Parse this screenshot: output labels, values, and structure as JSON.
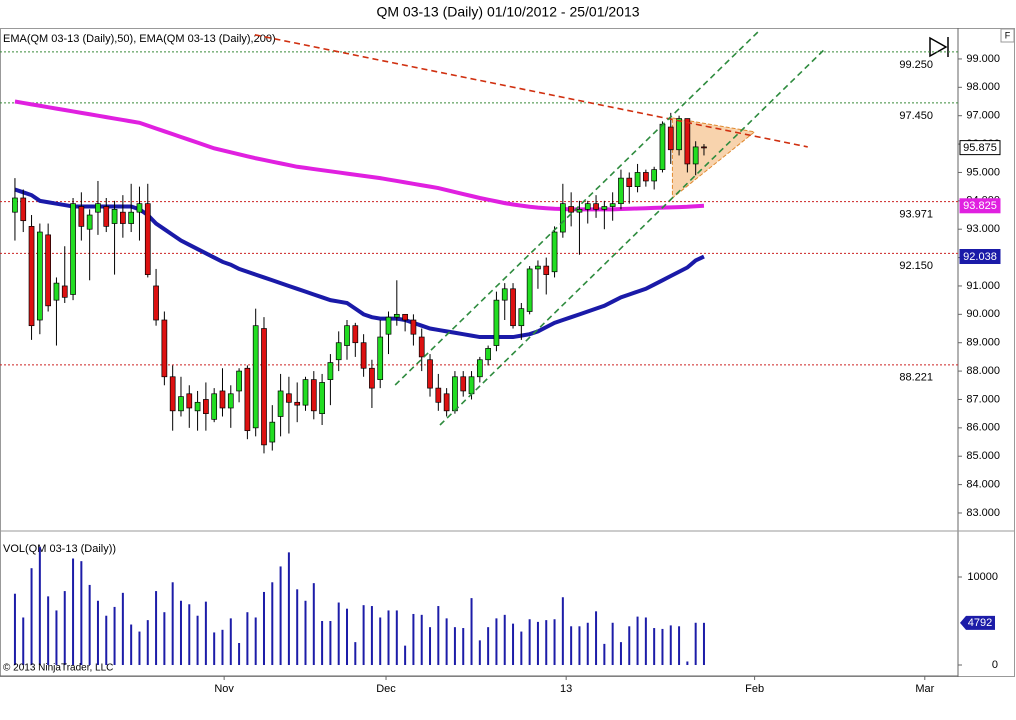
{
  "chart_data": [
    {
      "type": "candlestick",
      "title": "QM 03-13 (Daily)  01/10/2012 - 25/01/2013",
      "legend_text": "EMA(QM 03-13 (Daily),50), EMA(QM 03-13 (Daily),200)",
      "xlim": [
        -1.8,
        113.6
      ],
      "xticks": [
        {
          "value": 25.2,
          "label": "Nov"
        },
        {
          "value": 44.7,
          "label": "Dec"
        },
        {
          "value": 66.4,
          "label": "13"
        },
        {
          "value": 89.1,
          "label": "Feb"
        },
        {
          "value": 109.6,
          "label": "Mar"
        }
      ],
      "ylim": [
        82.4,
        100.02
      ],
      "yticks": [
        {
          "value": 83,
          "label": "83.000"
        },
        {
          "value": 84,
          "label": "84.000"
        },
        {
          "value": 85,
          "label": "85.000"
        },
        {
          "value": 86,
          "label": "86.000"
        },
        {
          "value": 87,
          "label": "87.000"
        },
        {
          "value": 88,
          "label": "88.000"
        },
        {
          "value": 89,
          "label": "89.000"
        },
        {
          "value": 90,
          "label": "90.000"
        },
        {
          "value": 91,
          "label": "91.000"
        },
        {
          "value": 92,
          "label": "92.000"
        },
        {
          "value": 93,
          "label": "93.000"
        },
        {
          "value": 94,
          "label": "94.000"
        },
        {
          "value": 95,
          "label": "95.000"
        },
        {
          "value": 96,
          "label": "96.000"
        },
        {
          "value": 97,
          "label": "97.000"
        },
        {
          "value": 98,
          "label": "98.000"
        },
        {
          "value": 99,
          "label": "99.000"
        }
      ],
      "up_color": "#22dd22",
      "down_color": "#dd1111",
      "open": [
        93.6,
        94.1,
        93.1,
        89.8,
        92.8,
        90.5,
        91.0,
        90.7,
        93.8,
        93.0,
        93.6,
        93.8,
        93.2,
        93.6,
        93.2,
        93.6,
        93.9,
        91.0,
        89.8,
        87.8,
        86.6,
        87.2,
        86.6,
        87.0,
        86.3,
        87.3,
        86.7,
        87.3,
        88.1,
        86.0,
        89.5,
        85.5,
        86.4,
        87.2,
        86.9,
        86.8,
        87.7,
        86.5,
        87.7,
        88.4,
        88.9,
        89.6,
        89.0,
        88.1,
        87.7,
        89.3,
        89.9,
        90.0,
        89.8,
        89.2,
        88.4,
        87.4,
        87.2,
        86.6,
        87.8,
        87.2,
        87.8,
        88.4,
        88.9,
        90.5,
        90.9,
        89.6,
        90.1,
        91.6,
        91.7,
        91.5,
        92.9,
        93.8,
        93.6,
        93.7,
        93.9,
        93.7,
        93.8,
        93.9,
        94.8,
        94.5,
        95.0,
        94.7,
        95.1,
        96.6,
        95.8,
        96.9,
        95.3,
        95.9
      ],
      "high": [
        94.8,
        94.4,
        93.5,
        93.2,
        93.2,
        91.3,
        92.4,
        94.1,
        94.3,
        93.7,
        94.7,
        94.1,
        94.0,
        94.2,
        94.6,
        94.5,
        94.6,
        91.6,
        90.1,
        88.2,
        87.8,
        87.5,
        87.3,
        87.6,
        87.4,
        88.1,
        87.5,
        88.1,
        88.2,
        90.2,
        89.9,
        86.8,
        87.9,
        87.8,
        87.6,
        87.8,
        88.0,
        87.9,
        88.6,
        89.4,
        89.8,
        89.7,
        89.3,
        88.4,
        89.8,
        90.1,
        91.2,
        90.0,
        90.0,
        89.5,
        88.6,
        87.9,
        87.4,
        88.0,
        88.0,
        88.0,
        88.5,
        88.9,
        90.8,
        91.1,
        91.1,
        90.4,
        91.7,
        91.9,
        92.0,
        93.1,
        94.6,
        94.3,
        94.0,
        94.0,
        94.2,
        94.0,
        94.3,
        95.1,
        95.0,
        95.3,
        95.1,
        95.2,
        96.8,
        97.1,
        97.0,
        96.9,
        96.1,
        96.0
      ],
      "low": [
        92.6,
        92.9,
        89.1,
        89.3,
        90.1,
        88.9,
        90.4,
        90.5,
        92.6,
        91.2,
        92.8,
        92.9,
        91.4,
        92.7,
        92.9,
        92.6,
        91.3,
        89.6,
        87.5,
        85.9,
        86.4,
        86.0,
        85.9,
        85.9,
        86.2,
        86.4,
        86.0,
        86.9,
        85.6,
        85.7,
        85.1,
        85.2,
        85.7,
        85.8,
        86.2,
        86.6,
        86.3,
        86.1,
        86.8,
        88.0,
        88.4,
        88.5,
        87.8,
        86.7,
        87.4,
        88.6,
        89.6,
        89.4,
        88.9,
        88.0,
        87.1,
        86.6,
        86.4,
        86.5,
        87.1,
        87.0,
        87.6,
        88.2,
        88.7,
        89.8,
        89.5,
        89.1,
        90.0,
        90.9,
        90.7,
        91.3,
        92.7,
        93.1,
        92.1,
        93.2,
        93.4,
        93.0,
        93.3,
        93.7,
        93.9,
        94.3,
        94.5,
        94.4,
        95.0,
        95.3,
        95.6,
        95.0,
        94.9,
        95.6
      ],
      "close": [
        94.1,
        93.3,
        89.6,
        92.9,
        90.3,
        91.1,
        90.6,
        93.9,
        93.1,
        93.5,
        93.9,
        93.1,
        93.7,
        93.2,
        93.6,
        93.9,
        91.4,
        89.8,
        87.8,
        86.6,
        87.1,
        86.7,
        86.9,
        86.5,
        87.2,
        86.7,
        87.2,
        88.0,
        85.9,
        89.6,
        85.4,
        86.2,
        87.3,
        86.9,
        86.8,
        87.7,
        86.6,
        87.6,
        88.3,
        89.0,
        89.6,
        89.0,
        88.1,
        87.4,
        89.2,
        89.9,
        90.0,
        89.8,
        89.3,
        88.5,
        87.4,
        86.9,
        86.6,
        87.8,
        87.3,
        87.8,
        88.4,
        88.8,
        90.5,
        90.9,
        89.6,
        90.2,
        91.6,
        91.7,
        91.4,
        92.9,
        93.9,
        93.6,
        93.7,
        93.9,
        93.7,
        93.8,
        93.9,
        94.8,
        94.5,
        95.0,
        94.7,
        95.1,
        96.7,
        95.8,
        96.9,
        95.3,
        95.9,
        95.875
      ],
      "ema": [
        {
          "color": "#1a1aa8",
          "values": [
            94.4,
            94.3,
            94.2,
            94.0,
            93.95,
            93.9,
            93.85,
            93.8,
            93.8,
            93.8,
            93.8,
            93.8,
            93.8,
            93.8,
            93.8,
            93.7,
            93.5,
            93.2,
            93.0,
            92.8,
            92.6,
            92.45,
            92.3,
            92.15,
            92.0,
            91.85,
            91.75,
            91.6,
            91.5,
            91.4,
            91.3,
            91.2,
            91.1,
            91.0,
            90.9,
            90.8,
            90.7,
            90.6,
            90.5,
            90.45,
            90.4,
            90.2,
            90.0,
            89.9,
            89.85,
            89.85,
            89.85,
            89.8,
            89.7,
            89.6,
            89.5,
            89.45,
            89.4,
            89.35,
            89.3,
            89.25,
            89.2,
            89.2,
            89.2,
            89.2,
            89.2,
            89.25,
            89.3,
            89.4,
            89.55,
            89.7,
            89.8,
            89.9,
            90.0,
            90.1,
            90.2,
            90.3,
            90.45,
            90.6,
            90.7,
            90.8,
            90.9,
            91.05,
            91.2,
            91.35,
            91.5,
            91.65,
            91.9,
            92.038
          ]
        },
        {
          "color": "#e020e0",
          "values": [
            97.5,
            97.45,
            97.4,
            97.35,
            97.3,
            97.25,
            97.2,
            97.15,
            97.1,
            97.05,
            97.0,
            96.95,
            96.9,
            96.85,
            96.8,
            96.75,
            96.65,
            96.55,
            96.45,
            96.35,
            96.25,
            96.15,
            96.05,
            95.95,
            95.85,
            95.78,
            95.71,
            95.64,
            95.57,
            95.5,
            95.44,
            95.38,
            95.32,
            95.26,
            95.2,
            95.16,
            95.12,
            95.08,
            95.04,
            95.0,
            94.96,
            94.92,
            94.88,
            94.84,
            94.8,
            94.75,
            94.7,
            94.65,
            94.6,
            94.55,
            94.5,
            94.45,
            94.38,
            94.31,
            94.24,
            94.17,
            94.1,
            94.04,
            93.98,
            93.92,
            93.87,
            93.83,
            93.79,
            93.76,
            93.74,
            93.72,
            93.71,
            93.7,
            93.7,
            93.7,
            93.7,
            93.7,
            93.7,
            93.71,
            93.72,
            93.73,
            93.74,
            93.75,
            93.76,
            93.77,
            93.78,
            93.79,
            93.81,
            93.825
          ]
        }
      ],
      "levels": [
        {
          "value": 99.25,
          "label": "99.250"
        },
        {
          "value": 97.45,
          "label": "97.450"
        },
        93.971,
        {
          "value": 92.15,
          "label": "92.150"
        },
        88.221
      ],
      "level_colors": [
        "#3a8a3a",
        "#3a8a3a",
        "#cc2222",
        "#cc2222",
        "#cc2222"
      ],
      "trend_lines": [
        {
          "color": "#d03010",
          "points": [
            [
              28.9,
              99.85
            ],
            [
              95.5,
              95.9
            ]
          ]
        },
        {
          "color": "#2e8b3e",
          "points": [
            [
              51.2,
              86.1
            ],
            [
              97.7,
              99.39
            ]
          ]
        },
        {
          "color": "#2e8b3e",
          "points": [
            [
              45.8,
              87.51
            ],
            [
              89.5,
              99.95
            ]
          ]
        }
      ],
      "triangle": {
        "color": "#f5c08a",
        "points": [
          [
            79.2,
            96.92
          ],
          [
            89.1,
            96.43
          ],
          [
            79.2,
            94.1
          ]
        ]
      }
    },
    {
      "type": "bar",
      "label": "VOL(QM 03-13 (Daily))",
      "color": "#1c1ca8",
      "ylim": [
        -1136,
        13864
      ],
      "yticks": [
        0,
        10000
      ],
      "values": [
        8100,
        5400,
        11000,
        13400,
        7800,
        6200,
        8400,
        12100,
        11800,
        9100,
        7300,
        5600,
        6600,
        8200,
        4600,
        3800,
        5100,
        8400,
        6000,
        9400,
        7300,
        6900,
        5600,
        7200,
        3700,
        4000,
        5300,
        2500,
        6000,
        5400,
        8300,
        9400,
        11200,
        12800,
        8600,
        7300,
        9300,
        5000,
        5000,
        7100,
        6400,
        2600,
        6800,
        6700,
        5400,
        6200,
        6200,
        2200,
        5800,
        5700,
        4300,
        6700,
        5300,
        4300,
        4200,
        7600,
        2800,
        4300,
        5300,
        5700,
        4700,
        3800,
        5200,
        4900,
        5100,
        5200,
        7700,
        4400,
        4400,
        4800,
        6100,
        2400,
        4800,
        2600,
        4400,
        5500,
        5400,
        4200,
        4100,
        4500,
        4400,
        400,
        4800,
        4792
      ]
    }
  ],
  "copyright": "© 2013 NinjaTrader, LLC",
  "panel_button": "F"
}
